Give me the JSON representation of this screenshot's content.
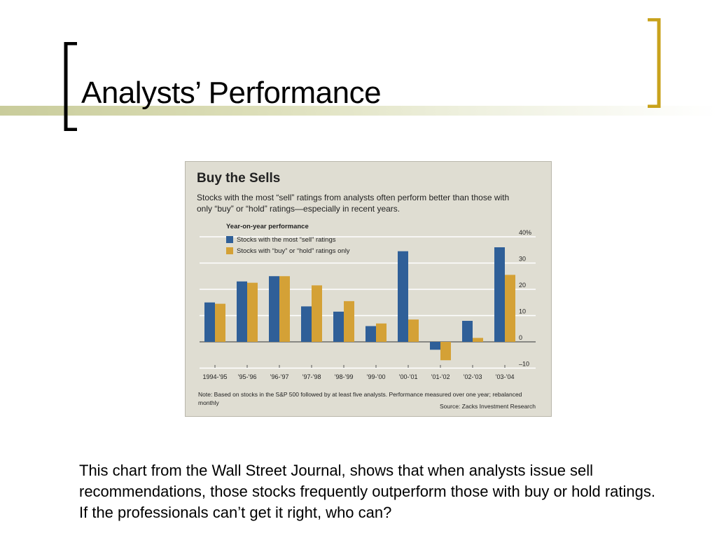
{
  "slide": {
    "title": "Analysts’ Performance",
    "caption": "This chart from the Wall Street Journal, shows that when analysts issue sell recommendations, those stocks frequently outperform those with buy or hold ratings.  If the professionals can’t get it right, who can?",
    "accent_color": "#c8a21c",
    "bracket_color": "#000000"
  },
  "chart_data": {
    "type": "bar",
    "title": "Buy the Sells",
    "subtitle": "Stocks with the most “sell” ratings from analysts often perform better than those with only “buy” or “hold” ratings—especially in recent years.",
    "legend_title": "Year-on-year performance",
    "categories": [
      "1994-’95",
      "’95-’96",
      "’96-’97",
      "’97-’98",
      "’98-’99",
      "’99-’00",
      "’00-’01",
      "’01-’02",
      "’02-’03",
      "’03-’04"
    ],
    "series": [
      {
        "name": "Stocks with the most “sell” ratings",
        "color": "#2f5f98",
        "values": [
          15,
          23,
          25,
          13.5,
          11.5,
          6,
          34.5,
          -3,
          8,
          36
        ]
      },
      {
        "name": "Stocks with “buy” or “hold” ratings only",
        "color": "#d4a136",
        "values": [
          14.5,
          22.5,
          25,
          21.5,
          15.5,
          7,
          8.5,
          -7,
          1.5,
          25.5
        ]
      }
    ],
    "y_ticks": [
      "40%",
      "30",
      "20",
      "10",
      "0",
      "–10"
    ],
    "y_tick_values": [
      40,
      30,
      20,
      10,
      0,
      -10
    ],
    "ylim": [
      -10,
      40
    ],
    "grid": true,
    "note": "Note: Based on stocks in the S&P 500 followed by at least five analysts. Performance measured over one year; rebalanced monthly",
    "source": "Source: Zacks Investment Research"
  }
}
